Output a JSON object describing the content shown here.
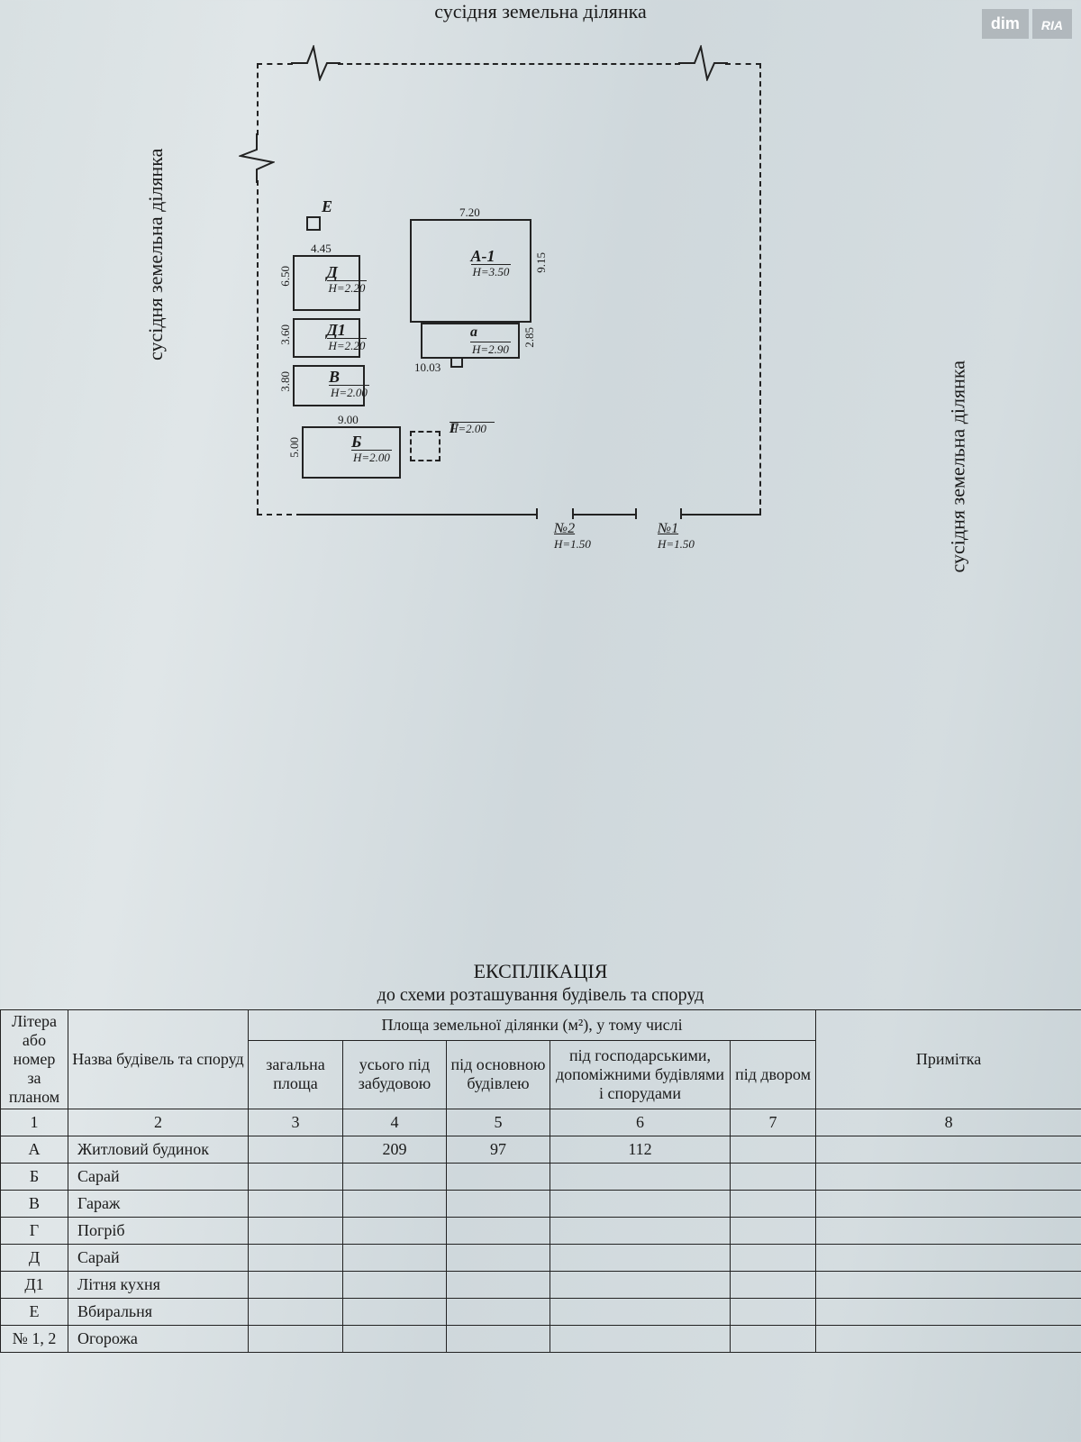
{
  "watermark": {
    "dim": "dim",
    "ria": "RIA"
  },
  "boundary_label": "сусідня земельна ділянка",
  "diagram": {
    "buildings": {
      "E": {
        "label": "Е"
      },
      "D": {
        "label": "Д",
        "h": "H=2.20",
        "top_dim": "4.45",
        "side_dim": "6.50"
      },
      "D1": {
        "label": "Д1",
        "h": "H=2.20",
        "side_dim": "3.60"
      },
      "V": {
        "label": "В",
        "h": "H=2.00",
        "side_dim": "3.80"
      },
      "B": {
        "label": "Б",
        "h": "H=2.00",
        "top_dim": "9.00",
        "side_dim": "5.00"
      },
      "G": {
        "label": "Г",
        "h": "H=2.00"
      },
      "A1": {
        "label": "А-1",
        "h": "H=3.50",
        "top_dim": "7.20",
        "side_dim": "9.15"
      },
      "a": {
        "label": "а",
        "h": "H=2.90",
        "bottom_dim": "10.03",
        "side_dim": "2.85"
      }
    },
    "gates": {
      "n2": {
        "label": "№2",
        "h": "H=1.50"
      },
      "n1": {
        "label": "№1",
        "h": "H=1.50"
      }
    }
  },
  "table": {
    "title": "ЕКСПЛІКАЦІЯ",
    "subtitle": "до схеми розташування будівель та споруд",
    "headers": {
      "c1": "Літера або номер за планом",
      "c2": "Назва будівель та споруд",
      "group": "Площа земельної ділянки (м²), у тому числі",
      "c3": "загальна площа",
      "c4": "усього під забудовою",
      "c5": "під основною будівлею",
      "c6": "під господарськими, допоміжними будівлями і спорудами",
      "c7": "під двором",
      "c8": "Примітка"
    },
    "numrow": {
      "c1": "1",
      "c2": "2",
      "c3": "3",
      "c4": "4",
      "c5": "5",
      "c6": "6",
      "c7": "7",
      "c8": "8"
    },
    "rows": [
      {
        "c1": "А",
        "c2": "Житловий будинок",
        "c3": "",
        "c4": "209",
        "c5": "97",
        "c6": "112",
        "c7": "",
        "c8": ""
      },
      {
        "c1": "Б",
        "c2": "Сарай"
      },
      {
        "c1": "В",
        "c2": "Гараж"
      },
      {
        "c1": "Г",
        "c2": "Погріб"
      },
      {
        "c1": "Д",
        "c2": "Сарай"
      },
      {
        "c1": "Д1",
        "c2": "Літня кухня"
      },
      {
        "c1": "Е",
        "c2": "Вбиральня"
      },
      {
        "c1": "№ 1, 2",
        "c2": "Огорожа"
      }
    ]
  }
}
